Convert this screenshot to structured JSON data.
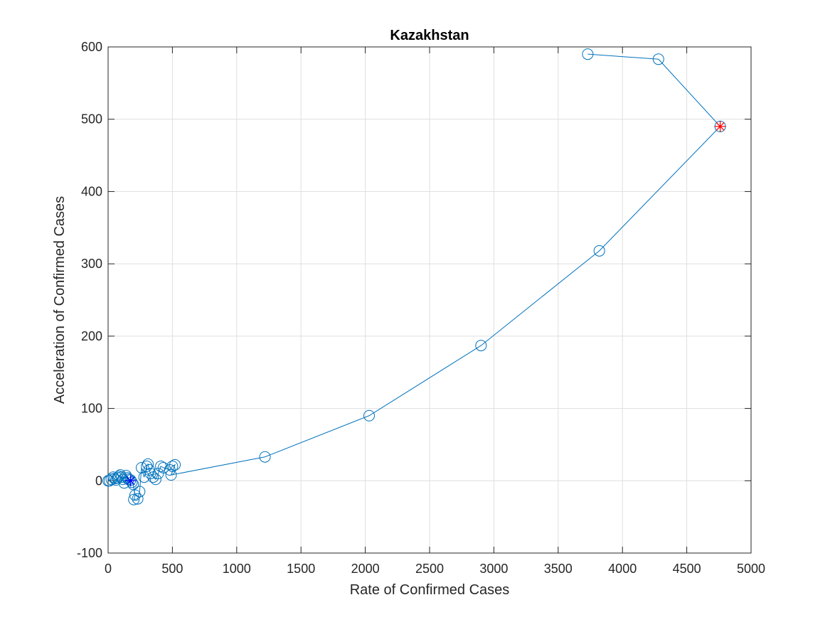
{
  "chart_data": {
    "type": "scatter",
    "title": "Kazakhstan",
    "xlabel": "Rate of Confirmed Cases",
    "ylabel": "Acceleration of Confirmed Cases",
    "xlim": [
      0,
      5000
    ],
    "ylim": [
      -100,
      600
    ],
    "xticks": [
      0,
      500,
      1000,
      1500,
      2000,
      2500,
      3000,
      3500,
      4000,
      4500,
      5000
    ],
    "yticks": [
      -100,
      0,
      100,
      200,
      300,
      400,
      500,
      600
    ],
    "grid": true,
    "legend": "none",
    "line_color": "#0072bd",
    "series": [
      {
        "marker": "circle",
        "connected": true,
        "x": [
          0,
          10,
          25,
          40,
          50,
          60,
          75,
          85,
          95,
          105,
          115,
          125,
          140,
          150,
          160,
          175,
          185,
          195,
          210,
          200,
          230,
          245,
          260,
          280,
          300,
          310,
          320,
          330,
          350,
          370,
          390,
          410,
          430,
          480,
          500,
          520,
          490,
          1220,
          2030,
          2900,
          3820,
          4760,
          4280,
          3730
        ],
        "y": [
          0,
          0,
          2,
          5,
          3,
          1,
          4,
          6,
          8,
          5,
          2,
          -3,
          7,
          4,
          2,
          1,
          -2,
          -5,
          -20,
          -26,
          -25,
          -15,
          18,
          5,
          20,
          23,
          15,
          10,
          5,
          2,
          10,
          20,
          18,
          15,
          20,
          22,
          8,
          33,
          90,
          187,
          318,
          490,
          583,
          590
        ]
      }
    ],
    "highlight_points": [
      {
        "marker": "asterisk",
        "color": "#0000ff",
        "x": 175,
        "y": 0
      },
      {
        "marker": "asterisk",
        "color": "#ff0000",
        "x": 4760,
        "y": 490
      }
    ]
  }
}
